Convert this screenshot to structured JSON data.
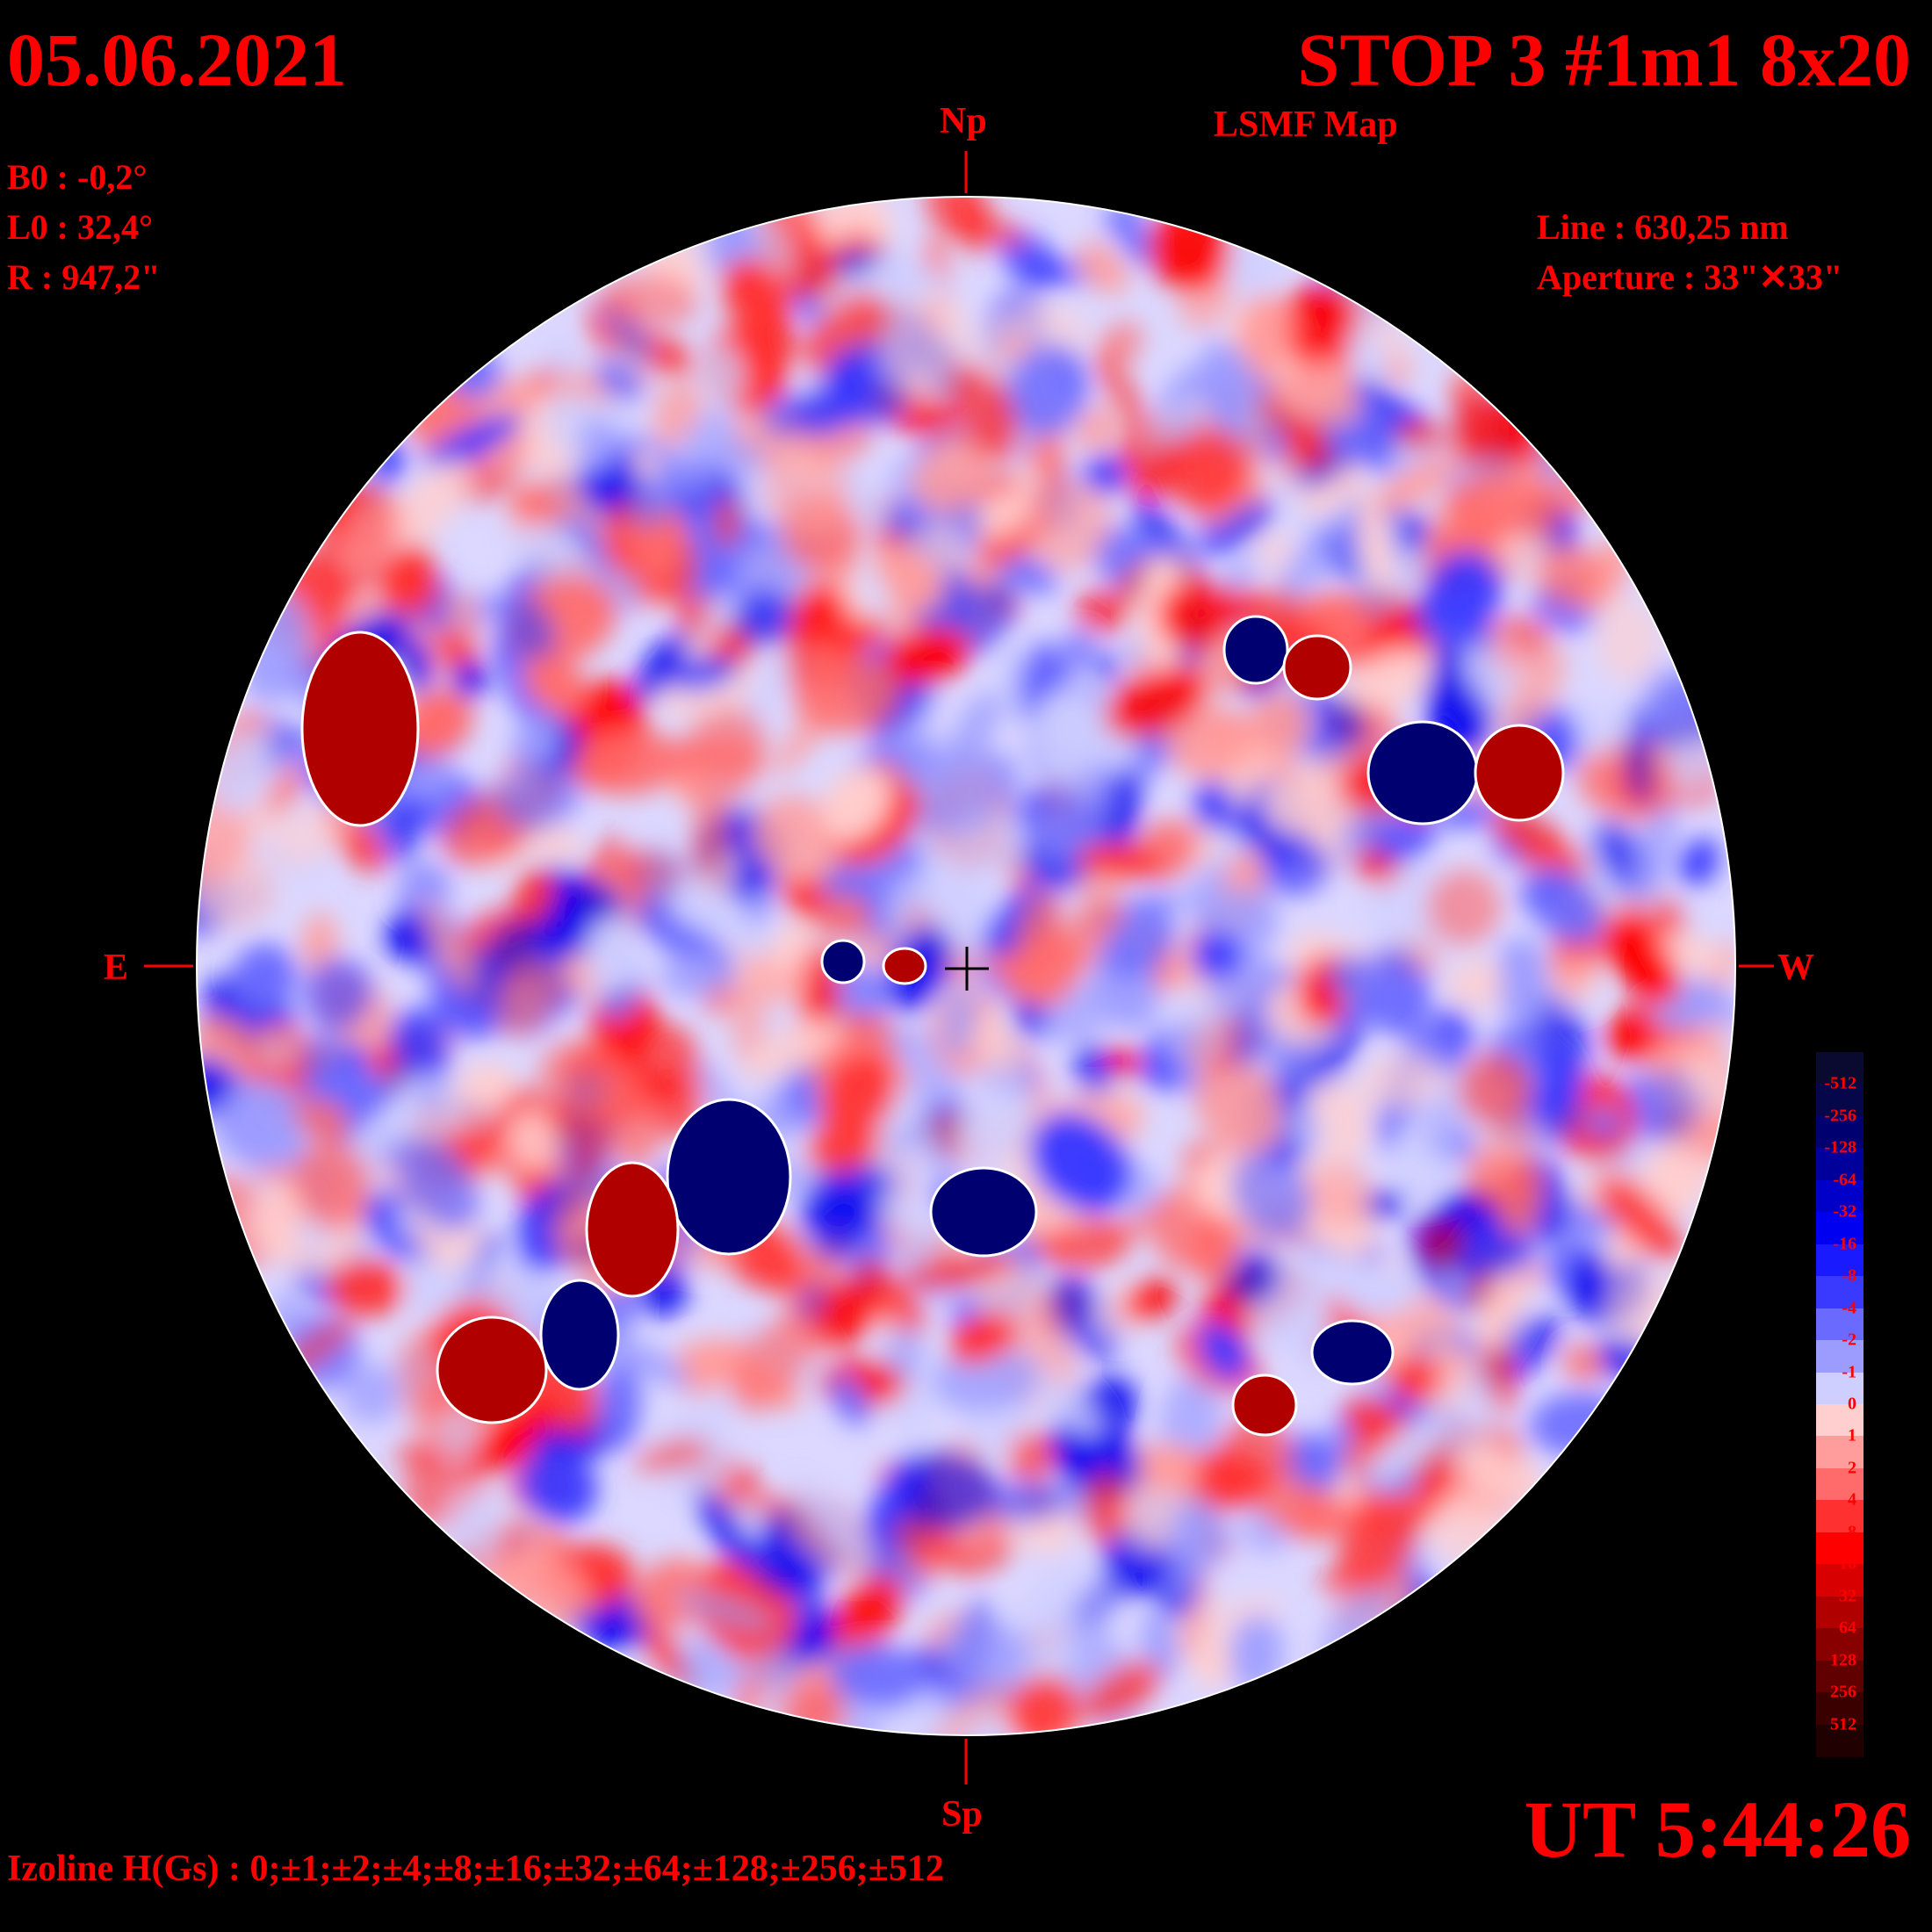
{
  "header": {
    "date": "05.06.2021",
    "title": "STOP 3 #1m1 8x20",
    "subtitle": "LSMF  Map"
  },
  "params": {
    "b0": "B0 : -0,2°",
    "l0": "L0 : 32,4°",
    "r": "R  : 947,2\""
  },
  "instrument": {
    "line": "Line :  630,25 nm",
    "aperture": "Aperture : 33\"✕33\""
  },
  "directions": {
    "north": "Np",
    "south": "Sp",
    "east": "E",
    "west": "W"
  },
  "time": "UT 5:44:26",
  "izoline": "Izoline H(Gs) : 0;±1;±2;±4;±8;±16;±32;±64;±128;±256;±512",
  "colorbar": {
    "labels": [
      "-512",
      "-256",
      "-128",
      "-64",
      "-32",
      "-16",
      "-8",
      "-4",
      "-2",
      "-1",
      "0",
      "1",
      "2",
      "4",
      "8",
      "16",
      "32",
      "64",
      "128",
      "256",
      "512"
    ],
    "colors": [
      "#0a0a30",
      "#06064a",
      "#000070",
      "#00009a",
      "#0000c8",
      "#0000f0",
      "#1a1aff",
      "#3a3aff",
      "#6a6aff",
      "#9c9cff",
      "#cfcfff",
      "#ffcfcf",
      "#ff9c9c",
      "#ff6a6a",
      "#ff3030",
      "#ff0000",
      "#d80000",
      "#b00000",
      "#880000",
      "#600000",
      "#3a0000",
      "#200000"
    ]
  },
  "map_features": {
    "positive_strong": "#b00000",
    "negative_strong": "#000070",
    "colors": [
      "#ffcfcf",
      "#ff9c9c",
      "#ff6a6a",
      "#ff3030",
      "#ff0000",
      "#cfcfff",
      "#9c9cff",
      "#6a6aff",
      "#3a3aff",
      "#0000f0"
    ]
  }
}
